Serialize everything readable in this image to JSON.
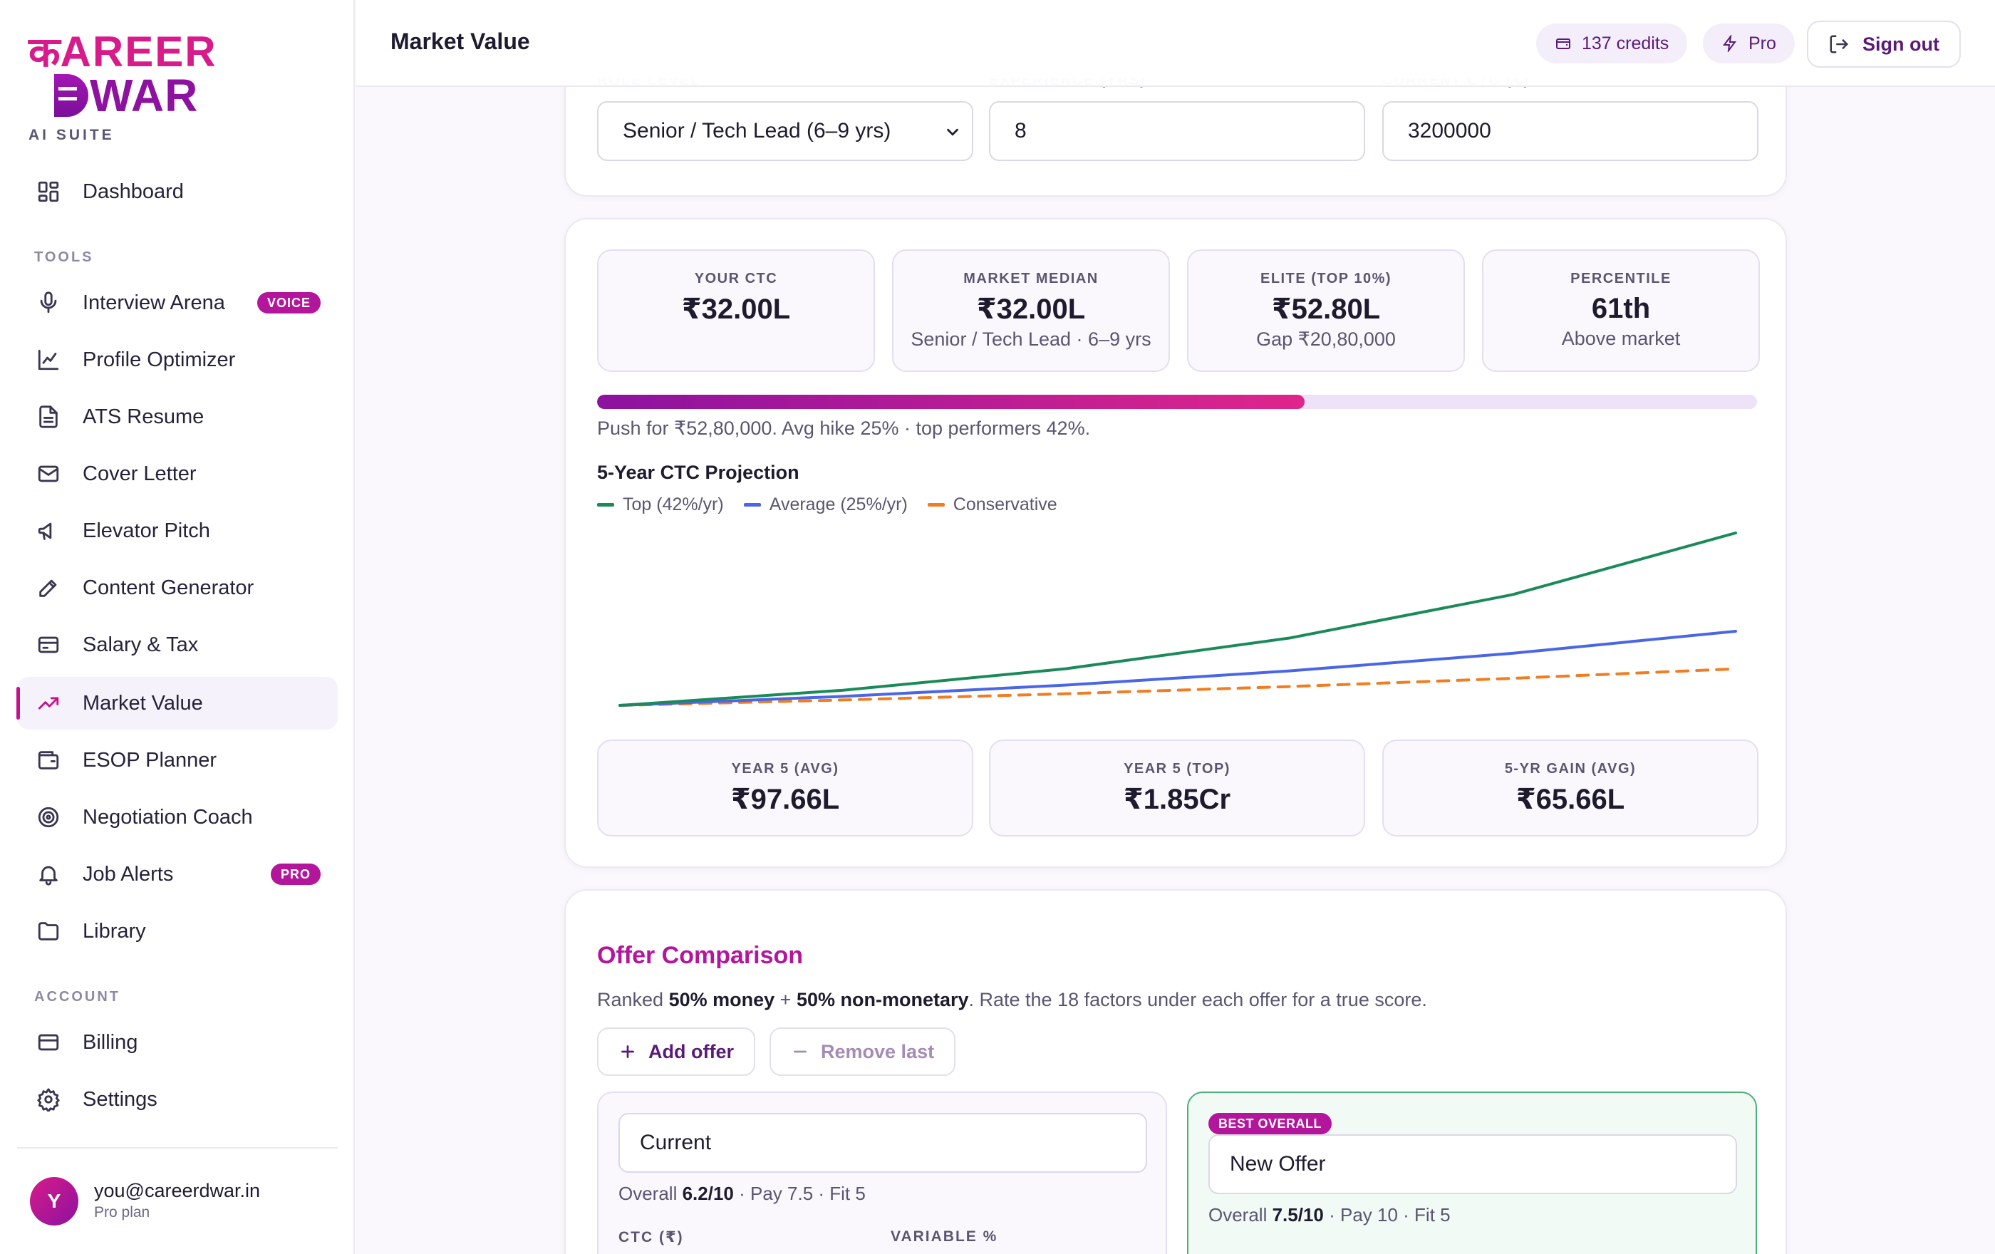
{
  "brand": {
    "line1_deva": "क",
    "line1_text": "AREER",
    "line2_text": "WAR",
    "tagline": "AI SUITE"
  },
  "sidebar": {
    "dashboard": "Dashboard",
    "tools_heading": "TOOLS",
    "tools": [
      {
        "label": "Interview Arena",
        "icon": "microphone-icon",
        "badge": "VOICE"
      },
      {
        "label": "Profile Optimizer",
        "icon": "line-chart-icon"
      },
      {
        "label": "ATS Resume",
        "icon": "document-icon"
      },
      {
        "label": "Cover Letter",
        "icon": "envelope-icon"
      },
      {
        "label": "Elevator Pitch",
        "icon": "megaphone-icon"
      },
      {
        "label": "Content Generator",
        "icon": "pencil-icon"
      },
      {
        "label": "Salary & Tax",
        "icon": "card-icon"
      },
      {
        "label": "Market Value",
        "icon": "trend-up-icon",
        "active": true
      },
      {
        "label": "ESOP Planner",
        "icon": "wallet-icon"
      },
      {
        "label": "Negotiation Coach",
        "icon": "target-icon"
      },
      {
        "label": "Job Alerts",
        "icon": "bell-icon",
        "badge": "PRO"
      },
      {
        "label": "Library",
        "icon": "folder-icon"
      }
    ],
    "account_heading": "ACCOUNT",
    "account": [
      {
        "label": "Billing",
        "icon": "credit-card-icon"
      },
      {
        "label": "Settings",
        "icon": "gear-icon"
      }
    ],
    "user": {
      "initial": "Y",
      "email": "you@careerdwar.in",
      "plan": "Pro plan"
    }
  },
  "header": {
    "title": "Market Value",
    "credits": "137 credits",
    "plan": "Pro",
    "signout": "Sign out"
  },
  "form": {
    "role_level": "Senior / Tech Lead (6–9 yrs)",
    "experience": "8",
    "current_ctc": "3200000"
  },
  "stats": [
    {
      "label": "YOUR CTC",
      "value": "₹32.00L",
      "sub": ""
    },
    {
      "label": "MARKET MEDIAN",
      "value": "₹32.00L",
      "sub": "Senior / Tech Lead · 6–9 yrs"
    },
    {
      "label": "ELITE (TOP 10%)",
      "value": "₹52.80L",
      "sub": "Gap ₹20,80,000"
    },
    {
      "label": "PERCENTILE",
      "value": "61th",
      "sub": "Above market"
    }
  ],
  "progress_fraction": 0.61,
  "push_text": "Push for ₹52,80,000. Avg hike 25% · top performers 42%.",
  "chart_data": {
    "type": "line",
    "title": "5-Year CTC Projection",
    "x": [
      0,
      1,
      2,
      3,
      4,
      5
    ],
    "series": [
      {
        "name": "Top (42%/yr)",
        "color": "#1b8a5a",
        "dashed": false,
        "values": [
          32.0,
          45.44,
          64.52,
          91.63,
          130.11,
          184.76
        ]
      },
      {
        "name": "Average (25%/yr)",
        "color": "#4a66e6",
        "dashed": false,
        "values": [
          32.0,
          40.0,
          50.0,
          62.5,
          78.13,
          97.66
        ]
      },
      {
        "name": "Conservative",
        "color": "#f07d22",
        "dashed": true,
        "values": [
          32.0,
          36.8,
          42.32,
          48.67,
          55.97,
          64.36
        ]
      }
    ],
    "ylim": [
      32.0,
      184.76
    ],
    "grid": false,
    "legend": "top-left"
  },
  "year_stats": [
    {
      "label": "YEAR 5 (AVG)",
      "value": "₹97.66L"
    },
    {
      "label": "YEAR 5 (TOP)",
      "value": "₹1.85Cr"
    },
    {
      "label": "5-YR GAIN (AVG)",
      "value": "₹65.66L"
    }
  ],
  "offers_section": {
    "title": "Offer Comparison",
    "desc_pre": "Ranked ",
    "desc_bold1": "50% money",
    "desc_mid": " + ",
    "desc_bold2": "50% non-monetary",
    "desc_post": ". Rate the 18 factors under each offer for a true score.",
    "add_label": "Add offer",
    "remove_label": "Remove last",
    "offers": [
      {
        "name": "Current",
        "overall_label": "Overall ",
        "overall": "6.2/10",
        "details": " · Pay 7.5 · Fit 5",
        "col1": "CTC (₹)",
        "col2": "VARIABLE %"
      },
      {
        "name": "New Offer",
        "badge": "BEST OVERALL",
        "overall_label": "Overall ",
        "overall": "7.5/10",
        "details": " · Pay 10 · Fit 5"
      }
    ]
  },
  "colors": {
    "accent": "#b3169a",
    "brand_pink": "#d81b8a",
    "brand_purple": "#8c129f"
  }
}
